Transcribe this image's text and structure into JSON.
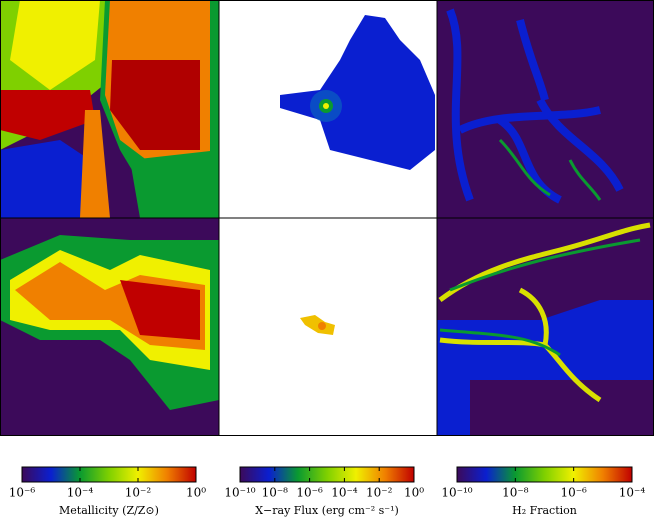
{
  "colorbars": [
    {
      "label": "Metallicity (Z/Z⊙)",
      "range": [
        1e-06,
        1
      ],
      "log": true,
      "ticks": [
        {
          "value": 1e-06,
          "label": "10⁻⁶"
        },
        {
          "value": 0.0001,
          "label": "10⁻⁴"
        },
        {
          "value": 0.01,
          "label": "10⁻²"
        },
        {
          "value": 1,
          "label": "10⁰"
        }
      ],
      "colors": [
        "#3c0a5a",
        "#0a1fd0",
        "#0a9a30",
        "#7fd000",
        "#f0f000",
        "#f08000",
        "#c00000"
      ]
    },
    {
      "label": "X−ray Flux (erg cm⁻² s⁻¹)",
      "range": [
        1e-10,
        1
      ],
      "log": true,
      "ticks": [
        {
          "value": 1e-10,
          "label": "10⁻¹⁰"
        },
        {
          "value": 1e-08,
          "label": "10⁻⁸"
        },
        {
          "value": 1e-06,
          "label": "10⁻⁶"
        },
        {
          "value": 0.0001,
          "label": "10⁻⁴"
        },
        {
          "value": 0.01,
          "label": "10⁻²"
        },
        {
          "value": 1,
          "label": "10⁰"
        }
      ],
      "colors": [
        "#3c0a5a",
        "#0a1fd0",
        "#0a9a30",
        "#7fd000",
        "#f0f000",
        "#f08000",
        "#c00000"
      ]
    },
    {
      "label": "H₂ Fraction",
      "range": [
        1e-10,
        0.0001
      ],
      "log": true,
      "ticks": [
        {
          "value": 1e-10,
          "label": "10⁻¹⁰"
        },
        {
          "value": 1e-08,
          "label": "10⁻⁸"
        },
        {
          "value": 1e-06,
          "label": "10⁻⁶"
        },
        {
          "value": 0.0001,
          "label": "10⁻⁴"
        }
      ],
      "colors": [
        "#3c0a5a",
        "#0a1fd0",
        "#0a9a30",
        "#7fd000",
        "#f0f000",
        "#f08000",
        "#c00000"
      ]
    }
  ]
}
